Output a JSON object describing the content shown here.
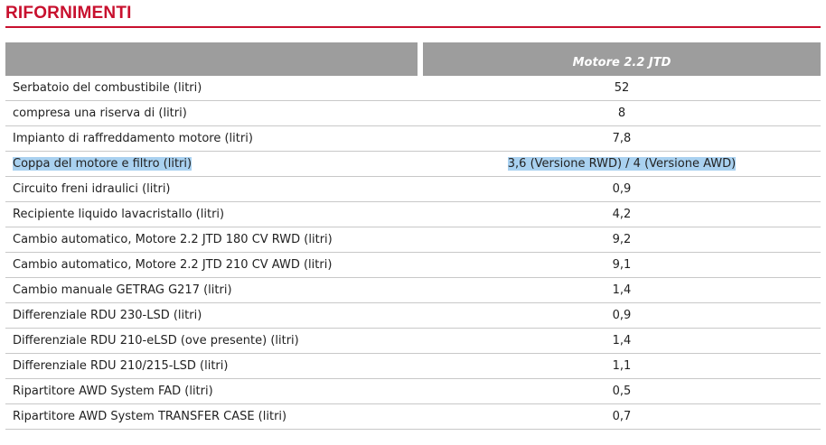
{
  "header": {
    "title": "RIFORNIMENTI"
  },
  "table": {
    "column_header": "Motore 2.2 JTD",
    "rows": [
      [
        "Serbatoio del combustibile (litri)",
        "52"
      ],
      [
        "compresa una riserva di (litri)",
        "8"
      ],
      [
        "Impianto di raffreddamento motore (litri)",
        "7,8"
      ],
      [
        "Coppa del motore e filtro (litri)",
        "3,6 (Versione RWD) / 4 (Versione AWD)"
      ],
      [
        "Circuito freni idraulici (litri)",
        "0,9"
      ],
      [
        "Recipiente liquido lavacristallo (litri)",
        "4,2"
      ],
      [
        "Cambio automatico, Motore 2.2 JTD 180 CV RWD (litri)",
        "9,2"
      ],
      [
        "Cambio automatico, Motore 2.2 JTD 210 CV AWD (litri)",
        "9,1"
      ],
      [
        "Cambio manuale GETRAG G217 (litri)",
        "1,4"
      ],
      [
        "Differenziale RDU 230-LSD (litri)",
        "0,9"
      ],
      [
        "Differenziale RDU 210-eLSD (ove presente) (litri)",
        "1,4"
      ],
      [
        "Differenziale RDU 210/215-LSD (litri)",
        "1,1"
      ],
      [
        "Ripartitore AWD System FAD (litri)",
        "0,5"
      ],
      [
        "Ripartitore AWD System TRANSFER CASE (litri)",
        "0,7"
      ]
    ],
    "highlighted_row": 3
  }
}
